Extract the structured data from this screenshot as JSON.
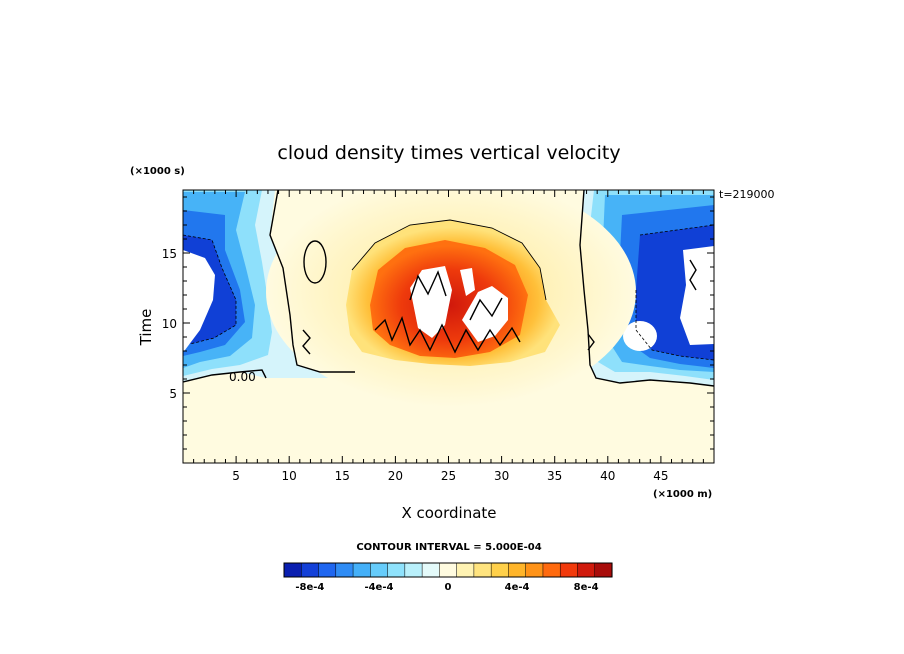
{
  "chart_data": {
    "type": "heatmap",
    "title": "cloud density times vertical velocity",
    "xlabel": "X coordinate",
    "ylabel": "Time",
    "x_scale_label": "(×1000 m)",
    "y_scale_label": "(×1000 s)",
    "time_stamp": "t=219000",
    "xlim": [
      0,
      50
    ],
    "ylim": [
      0,
      19.5
    ],
    "xticks": [
      5,
      10,
      15,
      20,
      25,
      30,
      35,
      40,
      45
    ],
    "yticks": [
      5,
      10,
      15
    ],
    "xtick_labels": [
      "5",
      "10",
      "15",
      "20",
      "25",
      "30",
      "35",
      "40",
      "45"
    ],
    "ytick_labels": [
      "5",
      "10",
      "15"
    ],
    "zero_contour_label": "0.00",
    "contour_interval_text": "CONTOUR INTERVAL = 5.000E-04",
    "colorbar": {
      "colors": [
        "#0a1fb0",
        "#1340d8",
        "#1f66f0",
        "#2f8cf5",
        "#44b0f8",
        "#66ccfb",
        "#8fe2fc",
        "#b9f0fb",
        "#e4fafa",
        "#fffbe0",
        "#fff3b3",
        "#ffe47f",
        "#ffd04a",
        "#ffb52a",
        "#ff9318",
        "#ff6a0e",
        "#f23a0c",
        "#d01a0c",
        "#a80c0a"
      ],
      "tick_labels": [
        "-8e-4",
        "-4e-4",
        "0",
        "4e-4",
        "8e-4"
      ],
      "tick_values": [
        -0.0008,
        -0.0004,
        0,
        0.0004,
        0.0008
      ]
    }
  }
}
